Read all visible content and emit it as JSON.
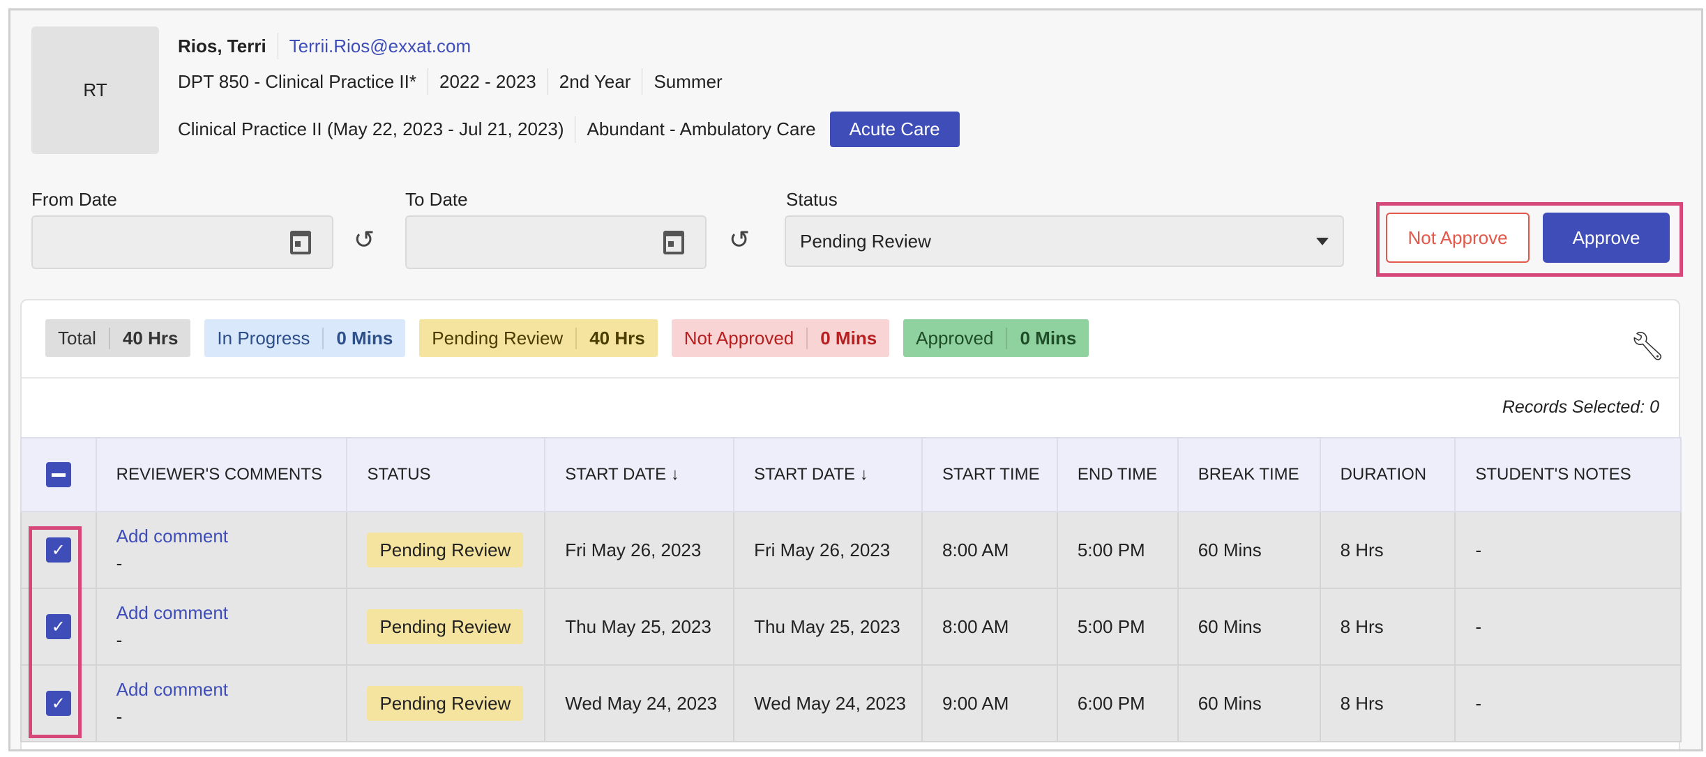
{
  "student": {
    "initials": "RT",
    "name": "Rios, Terri",
    "email": "Terrii.Rios@exxat.com",
    "course": "DPT 850 - Clinical Practice II*",
    "year": "2022 - 2023",
    "level": "2nd Year",
    "term": "Summer",
    "rotation": "Clinical Practice II (May 22, 2023 - Jul 21, 2023)",
    "site": "Abundant - Ambulatory Care",
    "setting": "Acute Care"
  },
  "filters": {
    "from_label": "From Date",
    "from_value": "",
    "to_label": "To Date",
    "to_value": "",
    "status_label": "Status",
    "status_value": "Pending Review"
  },
  "actions": {
    "not_approve": "Not Approve",
    "approve": "Approve"
  },
  "summary": [
    {
      "label": "Total",
      "value": "40 Hrs",
      "bg": "#dedede",
      "color": "#333"
    },
    {
      "label": "In Progress",
      "value": "0 Mins",
      "bg": "#d9e8fb",
      "color": "#2d4f8a"
    },
    {
      "label": "Pending Review",
      "value": "40 Hrs",
      "bg": "#f5e4a0",
      "color": "#4a3d00"
    },
    {
      "label": "Not Approved",
      "value": "0 Mins",
      "bg": "#f8d4d4",
      "color": "#b62020"
    },
    {
      "label": "Approved",
      "value": "0 Mins",
      "bg": "#8fd29f",
      "color": "#1f4d28"
    }
  ],
  "records_selected": "Records Selected: 0",
  "table": {
    "columns": [
      "REVIEWER'S COMMENTS",
      "STATUS",
      "START DATE ↓",
      "START DATE ↓",
      "START TIME",
      "END TIME",
      "BREAK TIME",
      "DURATION",
      "STUDENT'S NOTES"
    ],
    "rows": [
      {
        "checked": true,
        "comment_link": "Add comment",
        "comment": "-",
        "status": "Pending Review",
        "start_date": "Fri May 26, 2023",
        "start_date2": "Fri May 26, 2023",
        "start_time": "8:00 AM",
        "end_time": "5:00 PM",
        "break_time": "60 Mins",
        "duration": "8 Hrs",
        "notes": "-"
      },
      {
        "checked": true,
        "comment_link": "Add comment",
        "comment": "-",
        "status": "Pending Review",
        "start_date": "Thu May 25, 2023",
        "start_date2": "Thu May 25, 2023",
        "start_time": "8:00 AM",
        "end_time": "5:00 PM",
        "break_time": "60 Mins",
        "duration": "8 Hrs",
        "notes": "-"
      },
      {
        "checked": true,
        "comment_link": "Add comment",
        "comment": "-",
        "status": "Pending Review",
        "start_date": "Wed May 24, 2023",
        "start_date2": "Wed May 24, 2023",
        "start_time": "9:00 AM",
        "end_time": "6:00 PM",
        "break_time": "60 Mins",
        "duration": "8 Hrs",
        "notes": "-"
      }
    ]
  },
  "colors": {
    "accent": "#3f4db8",
    "highlight": "#d6487a",
    "danger": "#e2584a"
  }
}
